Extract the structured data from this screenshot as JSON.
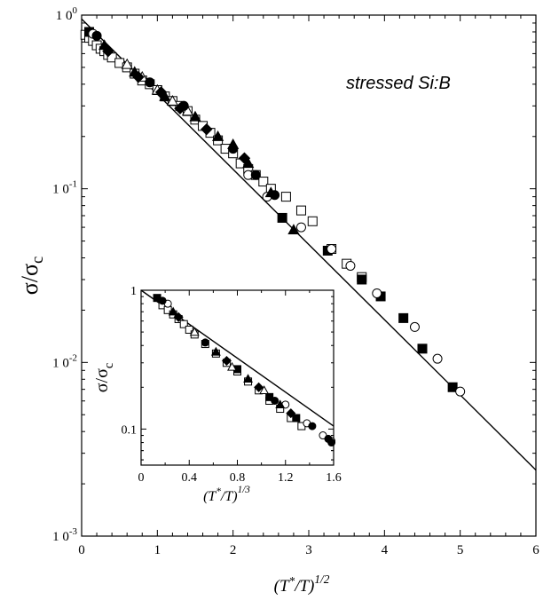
{
  "chart_data": [
    {
      "type": "scatter",
      "panel": "main",
      "x_label": "(T*/T)^{1/2}",
      "y_label": "σ/σ_c",
      "x_range": [
        0,
        6
      ],
      "y_range": [
        0.001,
        1
      ],
      "y_scale": "log",
      "x_ticks": [
        "0",
        "1",
        "2",
        "3",
        "4",
        "5",
        "6"
      ],
      "y_ticks": [
        {
          "base": "1 0",
          "exp": "0"
        },
        {
          "base": "1 0",
          "exp": "-1"
        },
        {
          "base": "1 0",
          "exp": "-2"
        },
        {
          "base": "1 0",
          "exp": "-3"
        }
      ],
      "annotation": "stressed Si:B",
      "fit_line": {
        "x": [
          0,
          6
        ],
        "y": [
          0.95,
          0.0024
        ]
      },
      "series": [
        {
          "marker": "open-square",
          "x": [
            0.05,
            0.1,
            0.15,
            0.2,
            0.25,
            0.3,
            0.35,
            0.4,
            0.5,
            0.6,
            0.7,
            0.8,
            0.9,
            1.0,
            1.1,
            1.2,
            1.3,
            1.4,
            1.5,
            1.6,
            1.7,
            1.8,
            1.9,
            2.0,
            2.1,
            2.2,
            2.3,
            2.4,
            2.5,
            2.7,
            2.9,
            3.05,
            3.3,
            3.5,
            3.7
          ],
          "y": [
            0.77,
            0.74,
            0.71,
            0.67,
            0.64,
            0.62,
            0.59,
            0.57,
            0.53,
            0.5,
            0.46,
            0.42,
            0.4,
            0.37,
            0.34,
            0.32,
            0.3,
            0.28,
            0.25,
            0.23,
            0.21,
            0.19,
            0.17,
            0.16,
            0.14,
            0.13,
            0.12,
            0.11,
            0.1,
            0.09,
            0.075,
            0.065,
            0.045,
            0.037,
            0.031
          ]
        },
        {
          "marker": "filled-square",
          "x": [
            0.1,
            2.65,
            3.25,
            3.7,
            3.95,
            4.25,
            4.5,
            4.9
          ],
          "y": [
            0.8,
            0.068,
            0.044,
            0.03,
            0.024,
            0.018,
            0.012,
            0.0072
          ]
        },
        {
          "marker": "open-circle",
          "x": [
            0.15,
            2.2,
            2.45,
            2.9,
            3.3,
            3.55,
            3.9,
            4.4,
            4.7,
            5.0
          ],
          "y": [
            0.78,
            0.12,
            0.09,
            0.06,
            0.045,
            0.036,
            0.025,
            0.016,
            0.0105,
            0.0068
          ]
        },
        {
          "marker": "filled-triangle",
          "x": [
            0.3,
            0.7,
            1.1,
            1.5,
            1.8,
            2.0,
            2.2,
            2.5,
            2.8
          ],
          "y": [
            0.67,
            0.47,
            0.34,
            0.26,
            0.2,
            0.18,
            0.14,
            0.095,
            0.058
          ]
        },
        {
          "marker": "open-triangle",
          "x": [
            0.6,
            0.8,
            1.0,
            1.2,
            1.4
          ],
          "y": [
            0.52,
            0.44,
            0.37,
            0.32,
            0.28
          ]
        },
        {
          "marker": "filled-diamond",
          "x": [
            0.35,
            0.75,
            1.05,
            1.3,
            1.65,
            2.15
          ],
          "y": [
            0.62,
            0.44,
            0.36,
            0.29,
            0.22,
            0.15
          ]
        },
        {
          "marker": "filled-circle",
          "x": [
            0.2,
            0.9,
            1.35,
            2.0,
            2.3,
            2.55
          ],
          "y": [
            0.76,
            0.41,
            0.3,
            0.17,
            0.12,
            0.092
          ]
        }
      ]
    },
    {
      "type": "scatter",
      "panel": "inset",
      "x_label": "(T*/T)^{1/3}",
      "y_label": "σ/σ_c",
      "x_range": [
        0,
        1.8
      ],
      "y_range": [
        0.055,
        1
      ],
      "y_scale": "log",
      "x_ticks": [
        "0",
        "0.4",
        "0.8",
        "1.2",
        "1.6"
      ],
      "y_ticks": [
        "1",
        "0.1"
      ],
      "fit_line": {
        "x": [
          0,
          1.8
        ],
        "y": [
          1.0,
          0.105
        ]
      },
      "series": [
        {
          "marker": "open-square",
          "x": [
            0.2,
            0.25,
            0.3,
            0.35,
            0.4,
            0.45,
            0.5,
            0.6,
            0.7,
            0.8,
            0.9,
            1.0,
            1.1,
            1.2,
            1.3,
            1.4,
            1.5
          ],
          "y": [
            0.78,
            0.72,
            0.67,
            0.62,
            0.57,
            0.52,
            0.48,
            0.41,
            0.35,
            0.3,
            0.26,
            0.22,
            0.19,
            0.16,
            0.14,
            0.12,
            0.105
          ]
        },
        {
          "marker": "filled-square",
          "x": [
            0.15,
            0.9,
            1.2,
            1.45
          ],
          "y": [
            0.88,
            0.27,
            0.17,
            0.12
          ]
        },
        {
          "marker": "open-circle",
          "x": [
            0.25,
            1.35,
            1.55,
            1.7,
            1.78
          ],
          "y": [
            0.8,
            0.15,
            0.11,
            0.09,
            0.082
          ]
        },
        {
          "marker": "filled-triangle",
          "x": [
            0.3,
            0.7,
            1.0,
            1.3
          ],
          "y": [
            0.7,
            0.36,
            0.23,
            0.15
          ]
        },
        {
          "marker": "open-triangle",
          "x": [
            0.5,
            0.85,
            1.15
          ],
          "y": [
            0.5,
            0.28,
            0.19
          ]
        },
        {
          "marker": "filled-diamond",
          "x": [
            0.35,
            0.8,
            1.1,
            1.4
          ],
          "y": [
            0.64,
            0.31,
            0.2,
            0.13
          ]
        },
        {
          "marker": "filled-circle",
          "x": [
            0.2,
            0.6,
            1.25,
            1.6,
            1.75,
            1.78
          ],
          "y": [
            0.84,
            0.42,
            0.16,
            0.105,
            0.085,
            0.08
          ]
        }
      ]
    }
  ]
}
